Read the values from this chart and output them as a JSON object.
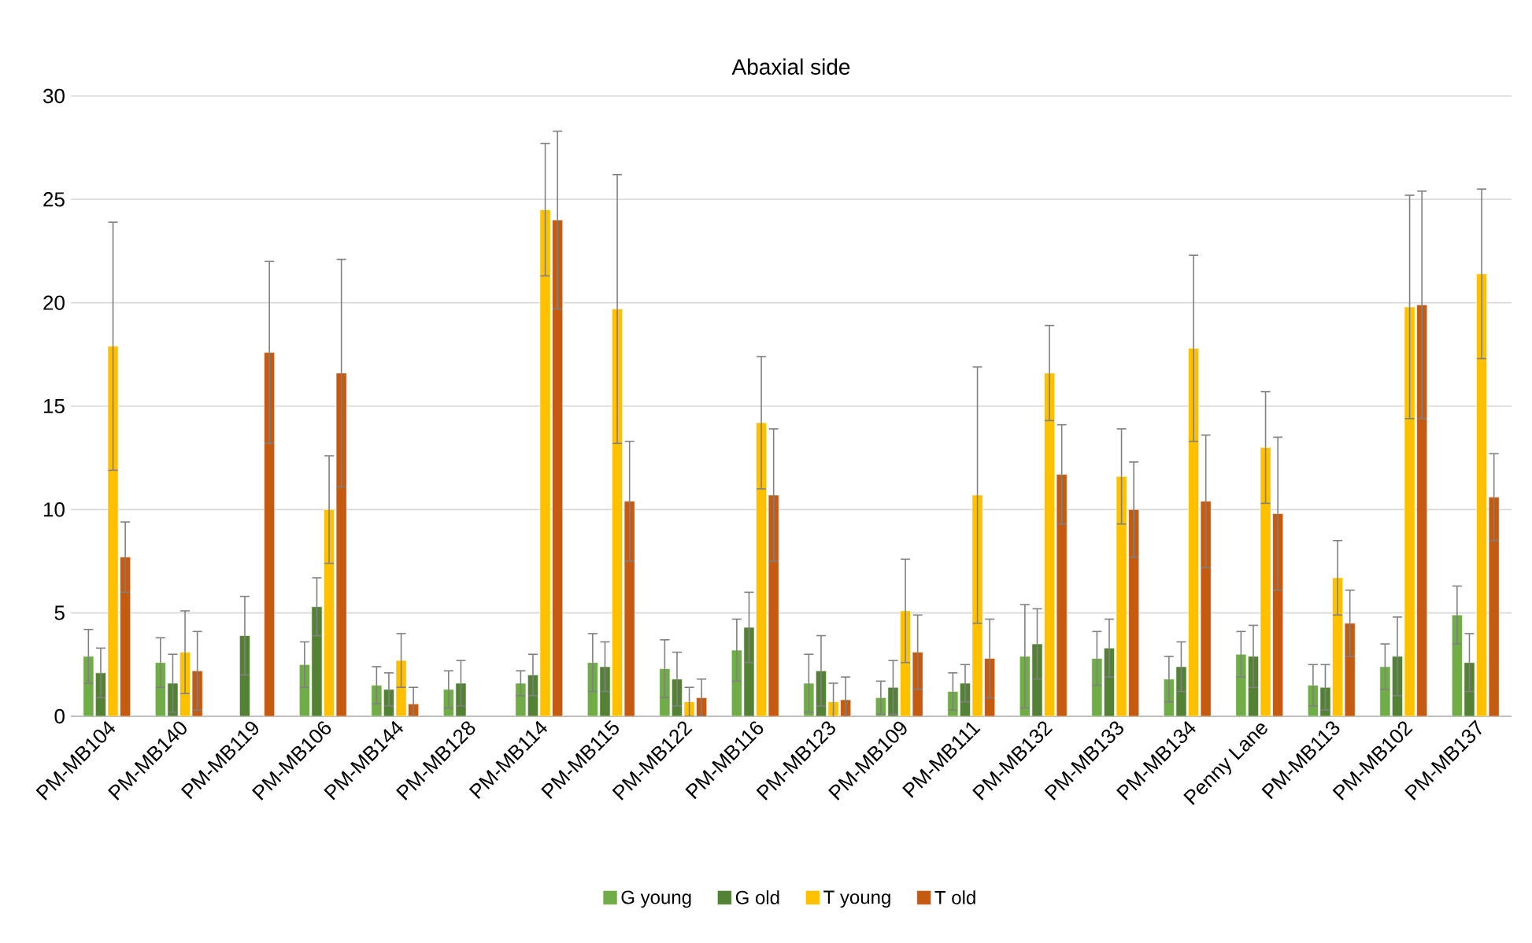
{
  "chart_data": {
    "type": "bar",
    "title": "Abaxial side",
    "categories": [
      "PM-MB104",
      "PM-MB140",
      "PM-MB119",
      "PM-MB106",
      "PM-MB144",
      "PM-MB128",
      "PM-MB114",
      "PM-MB115",
      "PM-MB122",
      "PM-MB116",
      "PM-MB123",
      "PM-MB109",
      "PM-MB111",
      "PM-MB132",
      "PM-MB133",
      "PM-MB134",
      "Penny Lane",
      "PM-MB113",
      "PM-MB102",
      "PM-MB137"
    ],
    "series": [
      {
        "name": "G young",
        "color": "#70ad47",
        "values": [
          2.9,
          2.6,
          null,
          2.5,
          1.5,
          1.3,
          1.6,
          2.6,
          2.3,
          3.2,
          1.6,
          0.9,
          1.2,
          2.9,
          2.8,
          1.8,
          3.0,
          1.5,
          2.4,
          4.9
        ],
        "errors": [
          1.3,
          1.2,
          null,
          1.1,
          0.9,
          0.9,
          0.6,
          1.4,
          1.4,
          1.5,
          1.4,
          0.8,
          0.9,
          2.5,
          1.3,
          1.1,
          1.1,
          1.0,
          1.1,
          1.4
        ]
      },
      {
        "name": "G old",
        "color": "#548235",
        "values": [
          2.1,
          1.6,
          3.9,
          5.3,
          1.3,
          1.6,
          2.0,
          2.4,
          1.8,
          4.3,
          2.2,
          1.4,
          1.6,
          3.5,
          3.3,
          2.4,
          2.9,
          1.4,
          2.9,
          2.6
        ],
        "errors": [
          1.2,
          1.4,
          1.9,
          1.4,
          0.8,
          1.1,
          1.0,
          1.2,
          1.3,
          1.7,
          1.7,
          1.3,
          0.9,
          1.7,
          1.4,
          1.2,
          1.5,
          1.1,
          1.9,
          1.4
        ]
      },
      {
        "name": "T young",
        "color": "#ffc000",
        "values": [
          17.9,
          3.1,
          null,
          10.0,
          2.7,
          null,
          24.5,
          19.7,
          0.7,
          14.2,
          0.7,
          5.1,
          10.7,
          16.6,
          11.6,
          17.8,
          13.0,
          6.7,
          19.8,
          21.4
        ],
        "errors": [
          6.0,
          2.0,
          null,
          2.6,
          1.3,
          null,
          3.2,
          6.5,
          0.7,
          3.2,
          0.9,
          2.5,
          6.2,
          2.3,
          2.3,
          4.5,
          2.7,
          1.8,
          5.4,
          4.1
        ]
      },
      {
        "name": "T old",
        "color": "#c55a11",
        "values": [
          7.7,
          2.2,
          17.6,
          16.6,
          0.6,
          null,
          24.0,
          10.4,
          0.9,
          10.7,
          0.8,
          3.1,
          2.8,
          11.7,
          10.0,
          10.4,
          9.8,
          4.5,
          19.9,
          10.6
        ],
        "errors": [
          1.7,
          1.9,
          4.4,
          5.5,
          0.8,
          null,
          4.3,
          2.9,
          0.9,
          3.2,
          1.1,
          1.8,
          1.9,
          2.4,
          2.3,
          3.2,
          3.7,
          1.6,
          5.5,
          2.1
        ]
      }
    ],
    "ylim": [
      0,
      30
    ],
    "yticks": [
      0,
      5,
      10,
      15,
      20,
      25,
      30
    ],
    "grid": "y",
    "legend": "bottom"
  }
}
